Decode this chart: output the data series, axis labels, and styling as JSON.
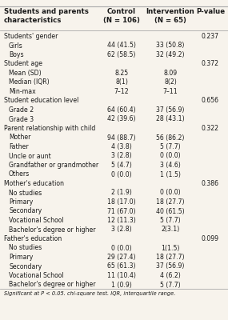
{
  "col1_header": "Students and parents\ncharacteristics",
  "col2_header": "Control\n(N = 106)",
  "col3_header": "Intervention\n(N = 65)",
  "col4_header": "P-value",
  "rows": [
    {
      "label": "Students' gender",
      "c": "",
      "i": "",
      "p": "0.237",
      "indent": false
    },
    {
      "label": "Girls",
      "c": "44 (41.5)",
      "i": "33 (50.8)",
      "p": "",
      "indent": true
    },
    {
      "label": "Boys",
      "c": "62 (58.5)",
      "i": "32 (49.2)",
      "p": "",
      "indent": true
    },
    {
      "label": "Student age",
      "c": "",
      "i": "",
      "p": "0.372",
      "indent": false
    },
    {
      "label": "Mean (SD)",
      "c": "8.25",
      "i": "8.09",
      "p": "",
      "indent": true
    },
    {
      "label": "Median (IQR)",
      "c": "8(1)",
      "i": "8(2)",
      "p": "",
      "indent": true
    },
    {
      "label": "Min-max",
      "c": "7–12",
      "i": "7–11",
      "p": "",
      "indent": true
    },
    {
      "label": "Student education level",
      "c": "",
      "i": "",
      "p": "0.656",
      "indent": false
    },
    {
      "label": "Grade 2",
      "c": "64 (60.4)",
      "i": "37 (56.9)",
      "p": "",
      "indent": true
    },
    {
      "label": "Grade 3",
      "c": "42 (39.6)",
      "i": "28 (43.1)",
      "p": "",
      "indent": true
    },
    {
      "label": "Parent relationship with child",
      "c": "",
      "i": "",
      "p": "0.322",
      "indent": false
    },
    {
      "label": "Mother",
      "c": "94 (88.7)",
      "i": "56 (86.2)",
      "p": "",
      "indent": true
    },
    {
      "label": "Father",
      "c": "4 (3.8)",
      "i": "5 (7.7)",
      "p": "",
      "indent": true
    },
    {
      "label": "Uncle or aunt",
      "c": "3 (2.8)",
      "i": "0 (0.0)",
      "p": "",
      "indent": true
    },
    {
      "label": "Grandfather or grandmother",
      "c": "5 (4.7)",
      "i": "3 (4.6)",
      "p": "",
      "indent": true
    },
    {
      "label": "Others",
      "c": "0 (0.0)",
      "i": "1 (1.5)",
      "p": "",
      "indent": true
    },
    {
      "label": "Mother's education",
      "c": "",
      "i": "",
      "p": "0.386",
      "indent": false
    },
    {
      "label": "No studies",
      "c": "2 (1.9)",
      "i": "0 (0.0)",
      "p": "",
      "indent": true
    },
    {
      "label": "Primary",
      "c": "18 (17.0)",
      "i": "18 (27.7)",
      "p": "",
      "indent": true
    },
    {
      "label": "Secondary",
      "c": "71 (67.0)",
      "i": "40 (61.5)",
      "p": "",
      "indent": true
    },
    {
      "label": "Vocational School",
      "c": "12 (11.3)",
      "i": "5 (7.7)",
      "p": "",
      "indent": true
    },
    {
      "label": "Bachelor's degree or higher",
      "c": "3 (2.8)",
      "i": "2(3.1)",
      "p": "",
      "indent": true
    },
    {
      "label": "Father's education",
      "c": "",
      "i": "",
      "p": "0.099",
      "indent": false
    },
    {
      "label": "No studies",
      "c": "0 (0.0)",
      "i": "1(1.5)",
      "p": "",
      "indent": true
    },
    {
      "label": "Primary",
      "c": "29 (27.4)",
      "i": "18 (27.7)",
      "p": "",
      "indent": true
    },
    {
      "label": "Secondary",
      "c": "65 (61.3)",
      "i": "37 (56.9)",
      "p": "",
      "indent": true
    },
    {
      "label": "Vocational School",
      "c": "11 (10.4)",
      "i": "4 (6.2)",
      "p": "",
      "indent": true
    },
    {
      "label": "Bachelor's degree or higher",
      "c": "1 (0.9)",
      "i": "5 (7.7)",
      "p": "",
      "indent": true
    }
  ],
  "footnote": "Significant at P < 0.05. chi-square test. IQR, interquartile range.",
  "bg_color": "#f7f3ec",
  "line_color": "#aaaaaa",
  "text_color": "#1a1a1a",
  "font_size": 5.6,
  "header_font_size": 6.2
}
